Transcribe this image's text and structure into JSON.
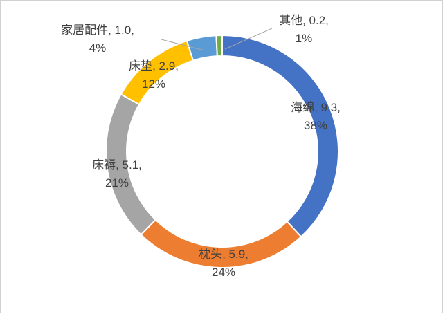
{
  "chart_data": {
    "type": "pie",
    "variant": "doughnut",
    "title": "",
    "categories": [
      "海绵",
      "枕头",
      "床褥",
      "床垫",
      "家居配件",
      "其他"
    ],
    "values": [
      9.3,
      5.9,
      5.1,
      2.9,
      1.0,
      0.2
    ],
    "percentages": [
      "38%",
      "24%",
      "21%",
      "12%",
      "4%",
      "1%"
    ],
    "label_line1": [
      "海绵, 9.3,",
      "枕头, 5.9,",
      "床褥, 5.1,",
      "床垫, 2.9,",
      "家居配件, 1.0,",
      "其他, 0.2,"
    ],
    "colors": [
      "#4472C4",
      "#ED7D31",
      "#A5A5A5",
      "#FFC000",
      "#5B9BD5",
      "#70AD47"
    ],
    "legend": "none",
    "start_angle": "12 o'clock",
    "direction": "clockwise"
  }
}
